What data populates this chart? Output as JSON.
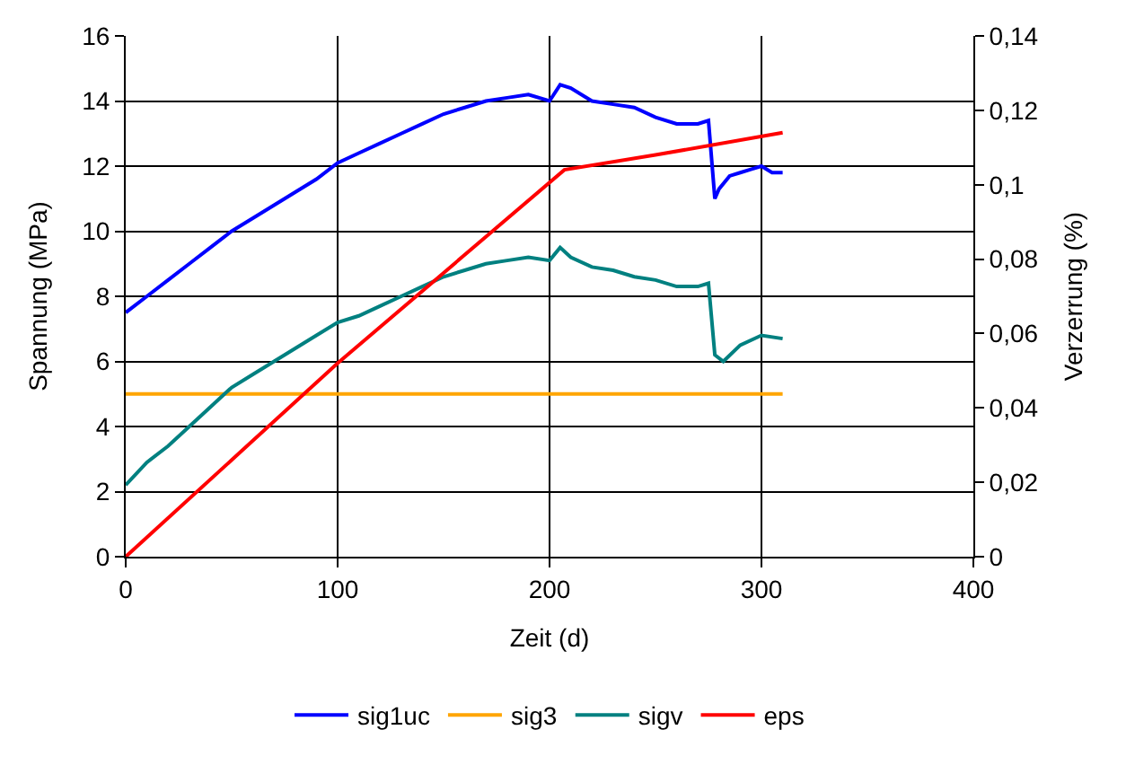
{
  "chart_data": {
    "type": "line",
    "xlabel": "Zeit (d)",
    "ylabel": "Spannung (MPa)",
    "y2label": "Verzerrung (%)",
    "xlim": [
      0,
      400
    ],
    "xticks": [
      0,
      100,
      200,
      300,
      400
    ],
    "ylim": [
      0,
      16
    ],
    "yticks": [
      0,
      2,
      4,
      6,
      8,
      10,
      12,
      14,
      16
    ],
    "y2lim": [
      0,
      0.14
    ],
    "y2ticks": [
      {
        "value": 0,
        "label": "0"
      },
      {
        "value": 0.02,
        "label": "0,02"
      },
      {
        "value": 0.04,
        "label": "0,04"
      },
      {
        "value": 0.06,
        "label": "0,06"
      },
      {
        "value": 0.08,
        "label": "0,08"
      },
      {
        "value": 0.1,
        "label": "0,1"
      },
      {
        "value": 0.12,
        "label": "0,12"
      },
      {
        "value": 0.14,
        "label": "0,14"
      }
    ],
    "grid": true,
    "legend": "bottom",
    "marker": "none",
    "line_style": "solid",
    "series": [
      {
        "name": "sig1uc",
        "color": "#0000ff",
        "x": [
          0,
          10,
          20,
          30,
          40,
          50,
          60,
          70,
          80,
          90,
          100,
          110,
          120,
          130,
          140,
          150,
          160,
          170,
          180,
          190,
          200,
          205,
          210,
          220,
          230,
          240,
          250,
          260,
          270,
          275,
          278,
          280,
          285,
          290,
          295,
          300,
          305,
          310
        ],
        "values": [
          7.5,
          8.0,
          8.5,
          9.0,
          9.5,
          10.0,
          10.4,
          10.8,
          11.2,
          11.6,
          12.1,
          12.4,
          12.7,
          13.0,
          13.3,
          13.6,
          13.8,
          14.0,
          14.1,
          14.2,
          14.0,
          14.5,
          14.4,
          14.0,
          13.9,
          13.8,
          13.5,
          13.3,
          13.3,
          13.4,
          11.0,
          11.3,
          11.7,
          11.8,
          11.9,
          12.0,
          11.8,
          11.8
        ]
      },
      {
        "name": "sig3",
        "color": "#ffa500",
        "x": [
          0,
          310
        ],
        "values": [
          5,
          5
        ]
      },
      {
        "name": "sigv",
        "color": "#008080",
        "x": [
          0,
          10,
          20,
          30,
          40,
          50,
          60,
          70,
          80,
          90,
          100,
          110,
          120,
          130,
          140,
          150,
          160,
          170,
          180,
          190,
          200,
          205,
          210,
          220,
          230,
          240,
          250,
          260,
          270,
          275,
          278,
          282,
          290,
          300,
          310
        ],
        "values": [
          2.2,
          2.9,
          3.4,
          4.0,
          4.6,
          5.2,
          5.6,
          6.0,
          6.4,
          6.8,
          7.2,
          7.4,
          7.7,
          8.0,
          8.3,
          8.6,
          8.8,
          9.0,
          9.1,
          9.2,
          9.1,
          9.5,
          9.2,
          8.9,
          8.8,
          8.6,
          8.5,
          8.3,
          8.3,
          8.4,
          6.2,
          6.0,
          6.5,
          6.8,
          6.7
        ]
      },
      {
        "name": "eps",
        "color": "#ff0000",
        "axis": "y2",
        "x": [
          0,
          100,
          207,
          250,
          310
        ],
        "values": [
          0,
          0.052,
          0.104,
          0.108,
          0.114
        ]
      }
    ]
  }
}
